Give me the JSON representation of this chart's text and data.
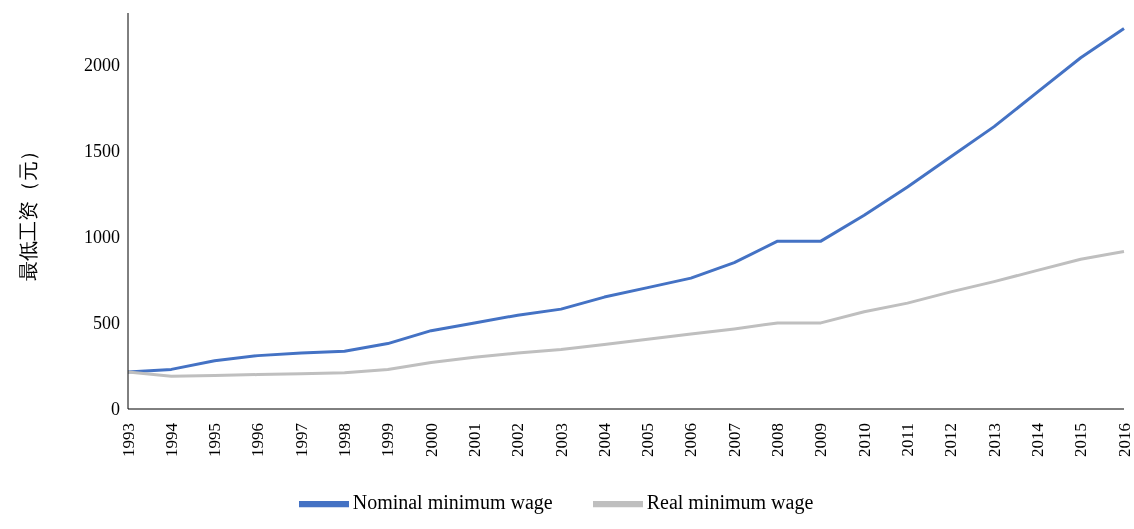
{
  "chart_data": {
    "type": "line",
    "ylabel": "最低工资（元）",
    "categories": [
      "1993",
      "1994",
      "1995",
      "1996",
      "1997",
      "1998",
      "1999",
      "2000",
      "2001",
      "2002",
      "2003",
      "2004",
      "2005",
      "2006",
      "2007",
      "2008",
      "2009",
      "2010",
      "2011",
      "2012",
      "2013",
      "2014",
      "2015",
      "2016"
    ],
    "series": [
      {
        "name": "Nominal minimum wage",
        "color": "#4472c4",
        "values": [
          215,
          230,
          280,
          310,
          325,
          335,
          380,
          455,
          500,
          545,
          580,
          650,
          705,
          760,
          850,
          975,
          975,
          1125,
          1290,
          1465,
          1640,
          1840,
          2040,
          2210
        ]
      },
      {
        "name": "Real minimum wage",
        "color": "#bfbfbf",
        "values": [
          215,
          190,
          195,
          200,
          205,
          210,
          230,
          270,
          300,
          325,
          345,
          375,
          405,
          435,
          465,
          500,
          500,
          565,
          615,
          680,
          740,
          805,
          870,
          915
        ]
      }
    ],
    "ylim": [
      0,
      2300
    ],
    "yticks": [
      0,
      500,
      1000,
      1500,
      2000
    ],
    "grid": false,
    "legend": "bottom",
    "marker": "none",
    "line_style": "solid"
  }
}
